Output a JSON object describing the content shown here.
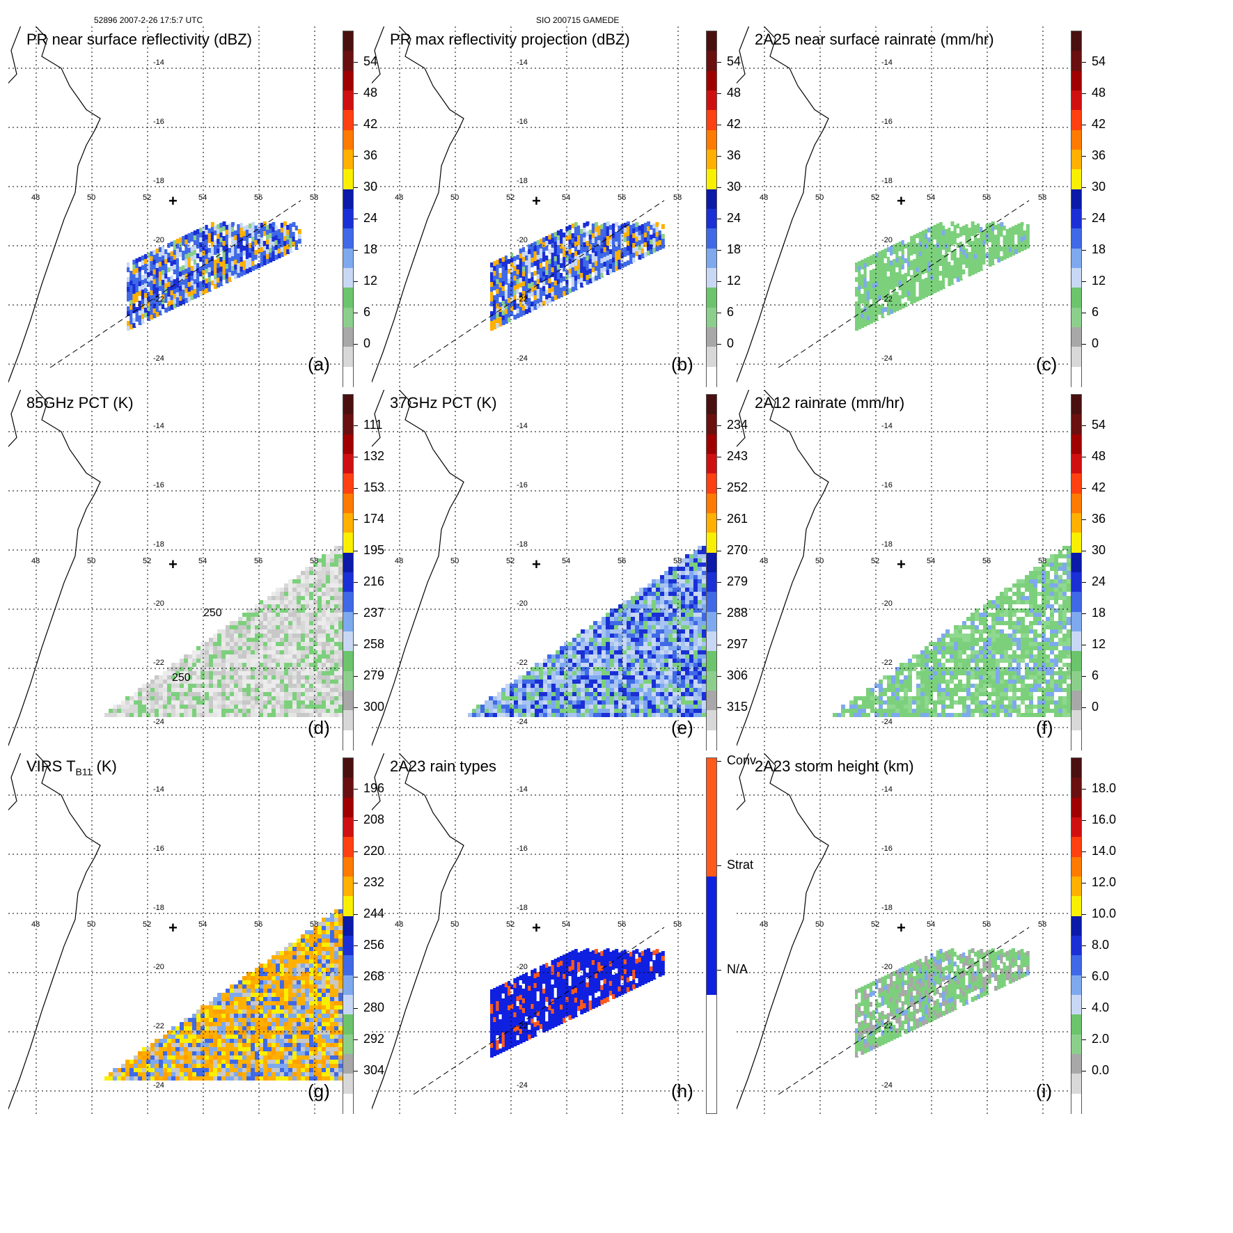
{
  "header": {
    "left": "52896 2007-2-26 17:5:7 UTC",
    "center": "SIO 200715 GAMEDE"
  },
  "map": {
    "lat_labels": [
      "-14",
      "-16",
      "-18",
      "-20",
      "-22",
      "-24"
    ],
    "lon_labels": [
      "48",
      "50",
      "52",
      "54",
      "56",
      "58"
    ],
    "center_marker": "+"
  },
  "panels": [
    {
      "id": "a",
      "title": "PR near surface reflectivity (dBZ)",
      "label": "(a)",
      "colorbar": {
        "ticks": [
          "54",
          "48",
          "42",
          "36",
          "30",
          "24",
          "18",
          "12",
          "6",
          "0"
        ]
      },
      "swath": "pr"
    },
    {
      "id": "b",
      "title": "PR max reflectivity projection (dBZ)",
      "label": "(b)",
      "colorbar": {
        "ticks": [
          "54",
          "48",
          "42",
          "36",
          "30",
          "24",
          "18",
          "12",
          "6",
          "0"
        ]
      },
      "swath": "pr"
    },
    {
      "id": "c",
      "title": "2A25 near surface rainrate (mm/hr)",
      "label": "(c)",
      "colorbar": {
        "ticks": [
          "54",
          "48",
          "42",
          "36",
          "30",
          "24",
          "18",
          "12",
          "6",
          "0"
        ]
      },
      "swath": "pr"
    },
    {
      "id": "d",
      "title": "85GHz PCT (K)",
      "label": "(d)",
      "colorbar": {
        "ticks": [
          "111",
          "132",
          "153",
          "174",
          "195",
          "216",
          "237",
          "258",
          "279",
          "300"
        ]
      },
      "swath": "tmi",
      "contour_labels": [
        "250",
        "250"
      ]
    },
    {
      "id": "e",
      "title": "37GHz PCT (K)",
      "label": "(e)",
      "colorbar": {
        "ticks": [
          "234",
          "243",
          "252",
          "261",
          "270",
          "279",
          "288",
          "297",
          "306",
          "315"
        ]
      },
      "swath": "tmi"
    },
    {
      "id": "f",
      "title": "2A12 rainrate (mm/hr)",
      "label": "(f)",
      "colorbar": {
        "ticks": [
          "54",
          "48",
          "42",
          "36",
          "30",
          "24",
          "18",
          "12",
          "6",
          "0"
        ]
      },
      "swath": "tmi"
    },
    {
      "id": "g",
      "title": "VIRS T",
      "title_sub": "B11",
      "title_tail": " (K)",
      "label": "(g)",
      "colorbar": {
        "ticks": [
          "196",
          "208",
          "220",
          "232",
          "244",
          "256",
          "268",
          "280",
          "292",
          "304"
        ]
      },
      "swath": "tmi"
    },
    {
      "id": "h",
      "title": "2A23 rain types",
      "label": "(h)",
      "colorbar": {
        "ticks": [
          "Conv",
          "Strat",
          "N/A"
        ]
      },
      "swath": "pr"
    },
    {
      "id": "i",
      "title": "2A23 storm height (km)",
      "label": "(i)",
      "colorbar": {
        "ticks": [
          "18.0",
          "16.0",
          "14.0",
          "12.0",
          "10.0",
          "8.0",
          "6.0",
          "4.0",
          "2.0",
          "0.0"
        ]
      },
      "swath": "pr"
    }
  ],
  "colors": {
    "reflectivity_scale": [
      "#ffffff",
      "#d8d8d8",
      "#a8a8a8",
      "#8ccf8c",
      "#6cc46c",
      "#c8d8f4",
      "#7fa9ee",
      "#3f69e6",
      "#1a2fd6",
      "#0b1aa8",
      "#f8f000",
      "#ffb000",
      "#ff7a00",
      "#ff4010",
      "#d01010",
      "#a00000",
      "#6a1010",
      "#4a1010"
    ],
    "rain_type": {
      "conv": "#ff5a1a",
      "strat": "#1020e0",
      "na": "#ffffff"
    },
    "coast": "#000000"
  }
}
